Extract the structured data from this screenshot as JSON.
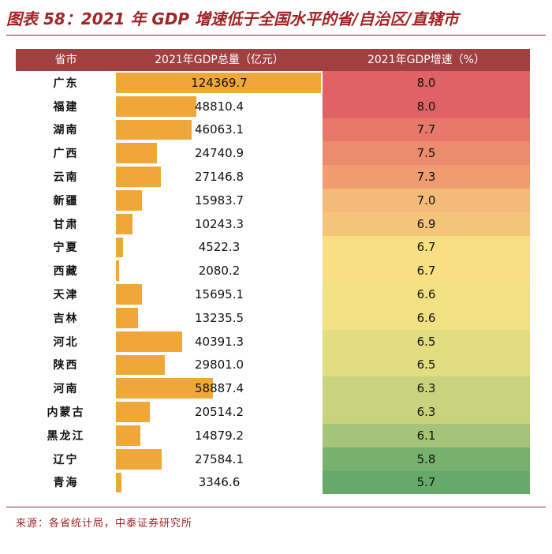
{
  "title": "图表 58：2021 年 GDP 增速低于全国水平的省/自治区/直辖市",
  "source": "来源：各省统计局，中泰证券研究所",
  "table": {
    "headers": [
      "省市",
      "2021年GDP总量（亿元）",
      "2021年GDP增速（%）"
    ]
  },
  "colors": {
    "title": "#a02425",
    "header_bg": "#a04040",
    "bar": "#f0a73a"
  },
  "chart_data": {
    "type": "table",
    "title": "图表 58：2021 年 GDP 增速低于全国水平的省/自治区/直辖市",
    "columns": [
      "省市",
      "2021年GDP总量（亿元）",
      "2021年GDP增速（%）"
    ],
    "gdp_max": 124369.7,
    "rows": [
      {
        "province": "广东",
        "gdp": "124369.7",
        "growth": "8.0",
        "color": "#e16266"
      },
      {
        "province": "福建",
        "gdp": "48810.4",
        "growth": "8.0",
        "color": "#e16266"
      },
      {
        "province": "湖南",
        "gdp": "46063.1",
        "growth": "7.7",
        "color": "#e8796a"
      },
      {
        "province": "广西",
        "gdp": "24740.9",
        "growth": "7.5",
        "color": "#ec8b6d"
      },
      {
        "province": "云南",
        "gdp": "27146.8",
        "growth": "7.3",
        "color": "#ee9c70"
      },
      {
        "province": "新疆",
        "gdp": "15983.7",
        "growth": "7.0",
        "color": "#f3bb77"
      },
      {
        "province": "甘肃",
        "gdp": "10243.3",
        "growth": "6.9",
        "color": "#f4c47a"
      },
      {
        "province": "宁夏",
        "gdp": "4522.3",
        "growth": "6.7",
        "color": "#f9df83"
      },
      {
        "province": "西藏",
        "gdp": "2080.2",
        "growth": "6.7",
        "color": "#f9df83"
      },
      {
        "province": "天津",
        "gdp": "15695.1",
        "growth": "6.6",
        "color": "#f2e182"
      },
      {
        "province": "吉林",
        "gdp": "13235.5",
        "growth": "6.6",
        "color": "#f2e182"
      },
      {
        "province": "河北",
        "gdp": "40391.3",
        "growth": "6.5",
        "color": "#e3dd82"
      },
      {
        "province": "陕西",
        "gdp": "29801.0",
        "growth": "6.5",
        "color": "#e3dd82"
      },
      {
        "province": "河南",
        "gdp": "58887.4",
        "growth": "6.3",
        "color": "#c8d37e"
      },
      {
        "province": "内蒙古",
        "gdp": "20514.2",
        "growth": "6.3",
        "color": "#c8d37e"
      },
      {
        "province": "黑龙江",
        "gdp": "14879.2",
        "growth": "6.1",
        "color": "#a5c477"
      },
      {
        "province": "辽宁",
        "gdp": "27584.1",
        "growth": "5.8",
        "color": "#78b06d"
      },
      {
        "province": "青海",
        "gdp": "3346.6",
        "growth": "5.7",
        "color": "#66a96a"
      }
    ]
  }
}
